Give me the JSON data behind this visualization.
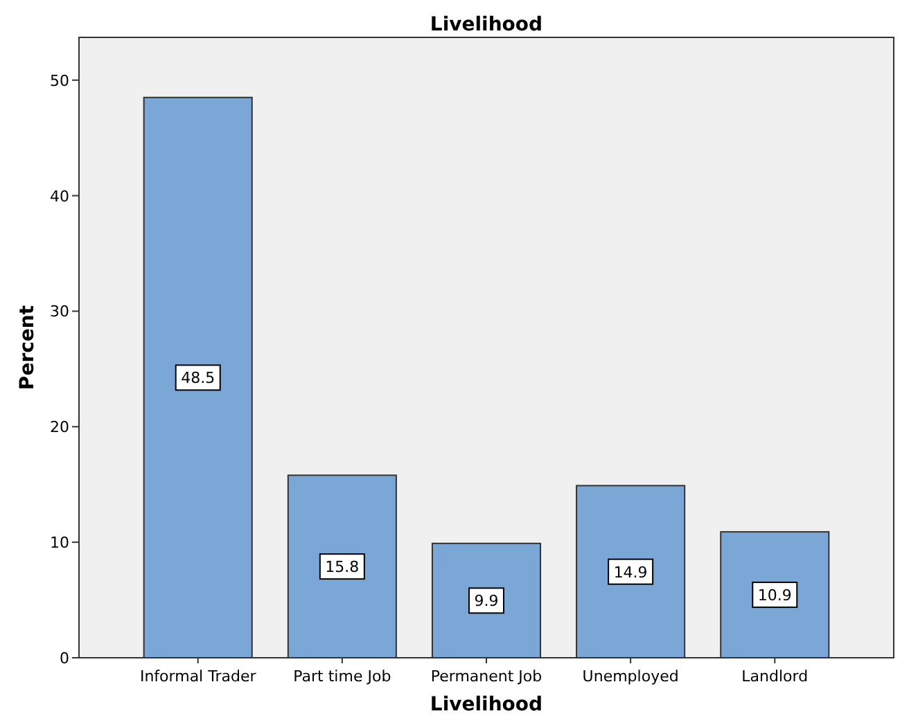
{
  "chart_data": {
    "type": "bar",
    "title": "Livelihood",
    "xlabel": "Livelihood",
    "ylabel": "Percent",
    "categories": [
      "Informal Trader",
      "Part time Job",
      "Permanent Job",
      "Unemployed",
      "Landlord"
    ],
    "values": [
      48.5,
      15.8,
      9.9,
      14.9,
      10.9
    ],
    "color": "#7ba7d6",
    "ylim": [
      0,
      53.7
    ],
    "yticks": [
      0,
      10,
      20,
      30,
      40,
      50
    ],
    "data_labels": true,
    "grid": false
  }
}
